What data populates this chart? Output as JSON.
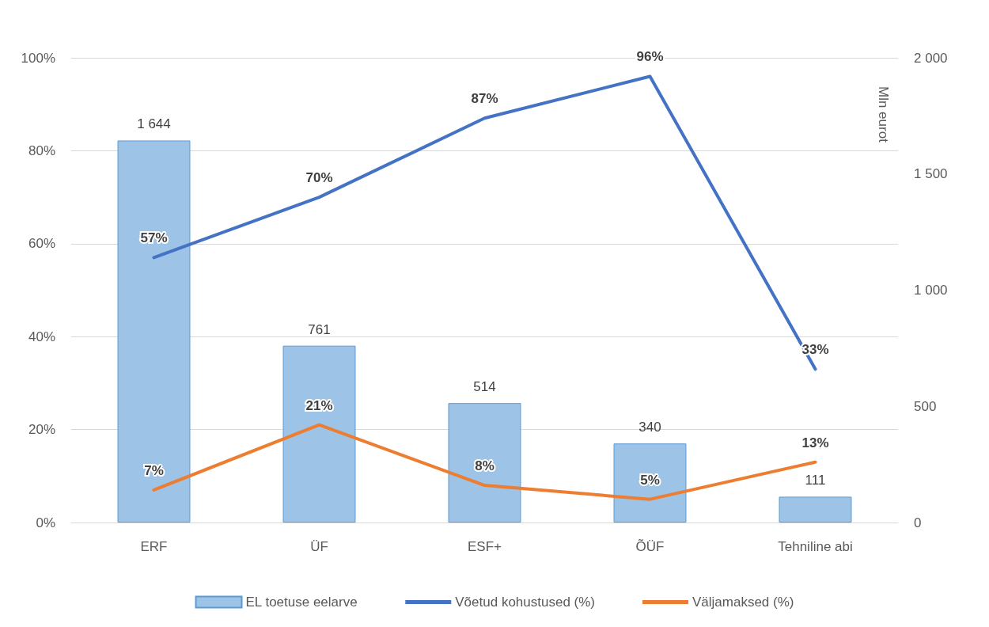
{
  "chart_data": {
    "type": "bar",
    "categories": [
      "ERF",
      "ÜF",
      "ESF+",
      "ÕÜF",
      "Tehniline abi"
    ],
    "series": [
      {
        "name": "EL toetuse eelarve",
        "axis": "y2",
        "color": "#9dc3e6",
        "values": [
          1644,
          761,
          514,
          340,
          111
        ],
        "value_labels": [
          "1 644",
          "761",
          "514",
          "340",
          "111"
        ]
      },
      {
        "name": "Võetud kohustused (%)",
        "type": "line",
        "color": "#4472c4",
        "values": [
          57,
          70,
          87,
          96,
          33
        ],
        "value_labels": [
          "57%",
          "70%",
          "87%",
          "96%",
          "33%"
        ]
      },
      {
        "name": "Väljamaksed (%)",
        "type": "line",
        "color": "#ed7d31",
        "values": [
          7,
          21,
          8,
          5,
          13
        ],
        "value_labels": [
          "7%",
          "21%",
          "8%",
          "5%",
          "13%"
        ]
      }
    ],
    "ylim": [
      0,
      100
    ],
    "yticks": [
      {
        "value": 0,
        "label": "0%"
      },
      {
        "value": 20,
        "label": "20%"
      },
      {
        "value": 40,
        "label": "40%"
      },
      {
        "value": 60,
        "label": "60%"
      },
      {
        "value": 80,
        "label": "80%"
      },
      {
        "value": 100,
        "label": "100%"
      }
    ],
    "y2label": "Mln eurot",
    "y2lim": [
      0,
      2000
    ],
    "y2ticks": [
      0,
      500,
      {
        "value": 1000,
        "label": "1 000"
      },
      {
        "value": 1500,
        "label": "1 500"
      },
      {
        "value": 2000,
        "label": "2 000"
      }
    ],
    "grid": "y",
    "legend": "bottom",
    "marker": "none",
    "line_style": "solid"
  }
}
